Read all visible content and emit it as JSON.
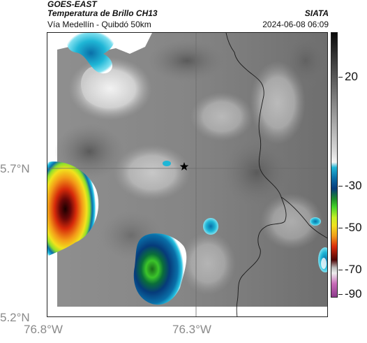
{
  "header": {
    "satellite": "GOES-EAST",
    "product": "Temperatura de Brillo CH13",
    "route": "Vía Medellín - Quibdó 50km",
    "organization": "SIATA",
    "timestamp": "2024-06-08 06:09"
  },
  "map": {
    "lat_labels": [
      "5.7°N",
      "5.2°N"
    ],
    "lon_labels": [
      "76.8°W",
      "76.3°W"
    ],
    "marker": "star-icon"
  },
  "colorbar": {
    "tick_labels": [
      "20",
      "-30",
      "-50",
      "-70",
      "-90"
    ],
    "colors": {
      "warm": "#808080",
      "cold_cyan": "#1fb6d6",
      "cold_blue": "#063b7a",
      "cold_green": "#46d42a",
      "cold_yellow": "#f1e11d",
      "cold_red": "#d92a0a",
      "cold_dark": "#4d0404",
      "coldest_magenta": "#c86bb8"
    }
  }
}
